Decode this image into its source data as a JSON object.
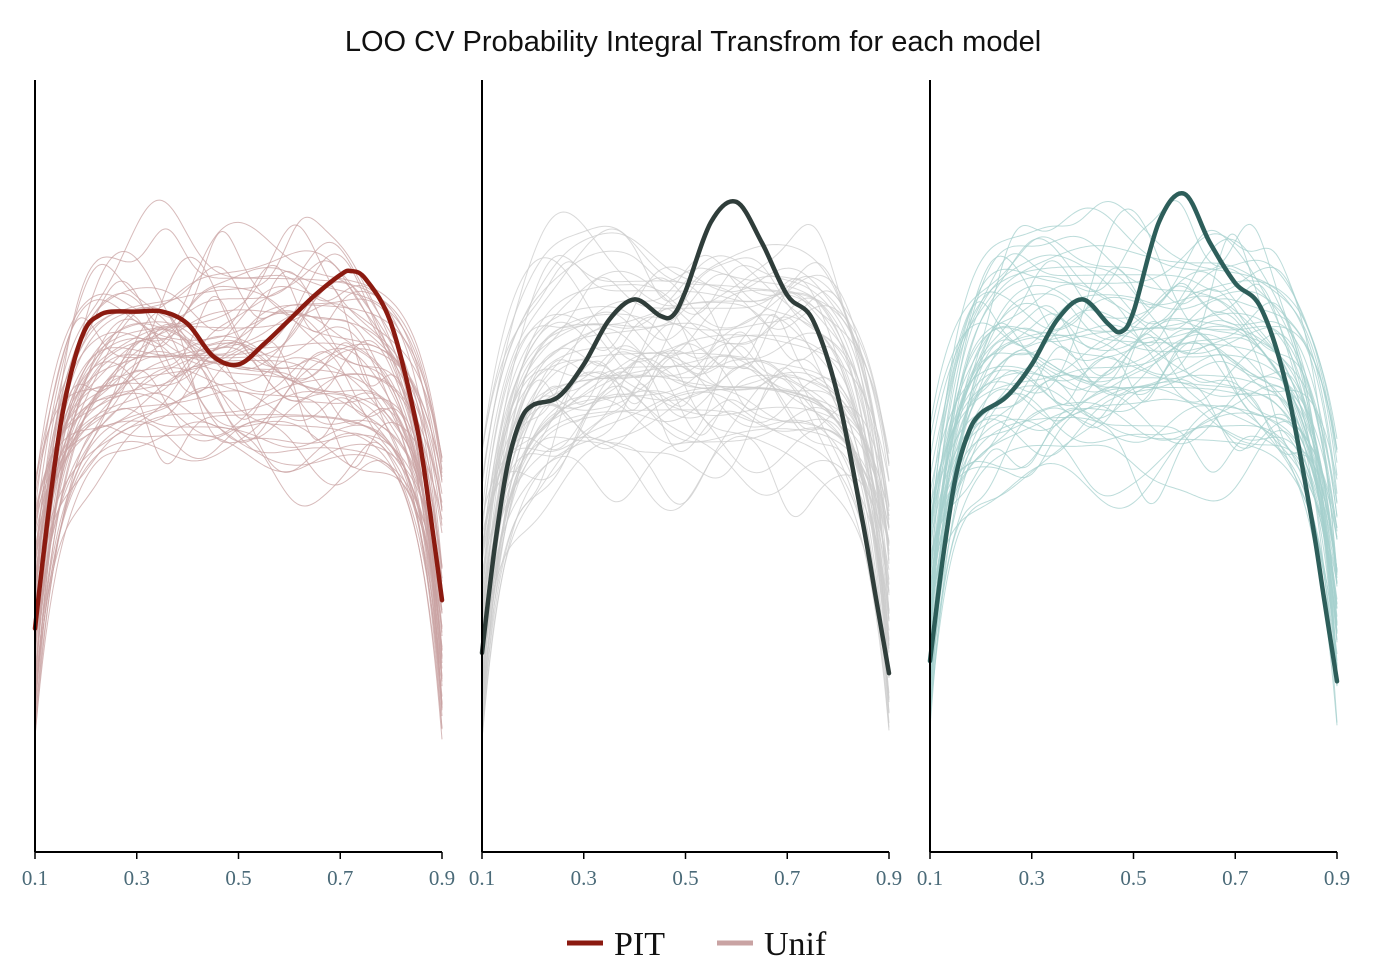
{
  "chart_data": {
    "title": "LOO CV Probability Integral Transfrom for each model",
    "type": "line",
    "x_range": [
      0.1,
      0.9
    ],
    "x_ticks": [
      "0.1",
      "0.3",
      "0.5",
      "0.7",
      "0.9"
    ],
    "y_range": [
      0,
      1.9
    ],
    "grid": false,
    "legend_position": "bottom",
    "legend": [
      {
        "label": "PIT",
        "color": "#8b1a10"
      },
      {
        "label": "Unif",
        "color": "#c9a3a3"
      }
    ],
    "panels": [
      {
        "pit_color": "#8b1a10",
        "unif_color": "#c9a3a3",
        "unif_band": {
          "low": 1.0,
          "high": 1.45
        },
        "pit": {
          "x": [
            0.1,
            0.125,
            0.15,
            0.175,
            0.2,
            0.225,
            0.25,
            0.3,
            0.35,
            0.4,
            0.45,
            0.5,
            0.55,
            0.6,
            0.65,
            0.7,
            0.72,
            0.75,
            0.8,
            0.85,
            0.875,
            0.9
          ],
          "y": [
            0.55,
            0.82,
            1.05,
            1.2,
            1.29,
            1.32,
            1.33,
            1.33,
            1.33,
            1.3,
            1.22,
            1.2,
            1.25,
            1.31,
            1.37,
            1.42,
            1.43,
            1.41,
            1.3,
            1.05,
            0.85,
            0.62
          ]
        }
      },
      {
        "pit_color": "#2f3d3a",
        "unif_color": "#cccccc",
        "unif_band": {
          "low": 1.0,
          "high": 1.45
        },
        "pit": {
          "x": [
            0.1,
            0.125,
            0.15,
            0.175,
            0.2,
            0.25,
            0.3,
            0.35,
            0.4,
            0.45,
            0.475,
            0.5,
            0.55,
            0.6,
            0.65,
            0.7,
            0.75,
            0.8,
            0.85,
            0.875,
            0.9
          ],
          "y": [
            0.49,
            0.75,
            0.95,
            1.06,
            1.1,
            1.12,
            1.2,
            1.31,
            1.36,
            1.32,
            1.32,
            1.38,
            1.55,
            1.6,
            1.5,
            1.37,
            1.31,
            1.12,
            0.8,
            0.62,
            0.44
          ]
        }
      },
      {
        "pit_color": "#2d5e5a",
        "unif_color": "#a6d0ce",
        "unif_band": {
          "low": 1.0,
          "high": 1.45
        },
        "pit": {
          "x": [
            0.1,
            0.125,
            0.15,
            0.175,
            0.2,
            0.25,
            0.3,
            0.35,
            0.4,
            0.45,
            0.475,
            0.5,
            0.55,
            0.6,
            0.65,
            0.7,
            0.75,
            0.8,
            0.85,
            0.875,
            0.9
          ],
          "y": [
            0.47,
            0.72,
            0.92,
            1.03,
            1.08,
            1.12,
            1.2,
            1.31,
            1.36,
            1.3,
            1.28,
            1.33,
            1.55,
            1.62,
            1.5,
            1.4,
            1.34,
            1.15,
            0.82,
            0.62,
            0.42
          ]
        }
      }
    ]
  }
}
